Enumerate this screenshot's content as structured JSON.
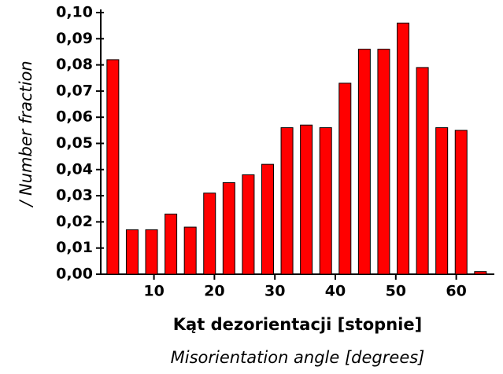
{
  "chart_data": {
    "type": "bar",
    "x_label": "Kąt dezorientacji [stopnie]",
    "x_label_2": "Misorientation angle [degrees]",
    "y_label": "/ Number fraction",
    "x": [
      3.2,
      6.4,
      9.6,
      12.8,
      16,
      19.2,
      22.4,
      25.6,
      28.8,
      32,
      35.2,
      38.4,
      41.6,
      44.8,
      48,
      51.2,
      54.4,
      57.6,
      60.8,
      64
    ],
    "values": [
      0.082,
      0.017,
      0.017,
      0.023,
      0.018,
      0.031,
      0.035,
      0.038,
      0.042,
      0.056,
      0.057,
      0.056,
      0.073,
      0.086,
      0.086,
      0.096,
      0.079,
      0.056,
      0.055,
      0.001
    ],
    "color": "#ff0000",
    "xlim": [
      1.2,
      66.3
    ],
    "xticks": [
      10,
      20,
      30,
      40,
      50,
      60
    ],
    "ylim": [
      0,
      0.1
    ],
    "yticks": [
      {
        "value": 0,
        "label": "0,00"
      },
      {
        "value": 0.01,
        "label": "0,01"
      },
      {
        "value": 0.02,
        "label": "0,02"
      },
      {
        "value": 0.03,
        "label": "0,03"
      },
      {
        "value": 0.04,
        "label": "0,04"
      },
      {
        "value": 0.05,
        "label": "0,05"
      },
      {
        "value": 0.06,
        "label": "0,06"
      },
      {
        "value": 0.07,
        "label": "0,07"
      },
      {
        "value": 0.08,
        "label": "0,08"
      },
      {
        "value": 0.09,
        "label": "0,09"
      },
      {
        "value": 0.1,
        "label": "0,10"
      }
    ]
  }
}
